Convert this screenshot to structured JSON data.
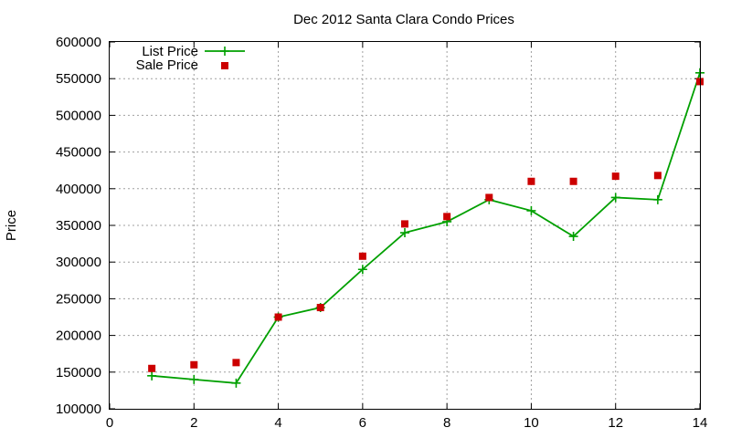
{
  "colors": {
    "list_price": "#00a000",
    "sale_price": "#cc0000"
  },
  "chart_data": {
    "type": "line",
    "title": "Dec 2012 Santa Clara Condo Prices",
    "xlabel": "",
    "ylabel": "Price",
    "xlim": [
      0,
      14
    ],
    "ylim": [
      100000,
      600000
    ],
    "x_ticks": [
      0,
      2,
      4,
      6,
      8,
      10,
      12,
      14
    ],
    "y_ticks": [
      100000,
      150000,
      200000,
      250000,
      300000,
      350000,
      400000,
      450000,
      500000,
      550000,
      600000
    ],
    "grid": true,
    "legend_position": "top-left",
    "series": [
      {
        "name": "List Price",
        "style": "line+plus",
        "x": [
          1,
          2,
          3,
          4,
          5,
          6,
          7,
          8,
          9,
          10,
          11,
          12,
          13,
          14
        ],
        "values": [
          145000,
          140000,
          135000,
          225000,
          238000,
          290000,
          340000,
          355000,
          385000,
          370000,
          335000,
          388000,
          385000,
          558000
        ]
      },
      {
        "name": "Sale Price",
        "style": "square",
        "x": [
          1,
          2,
          3,
          4,
          5,
          6,
          7,
          8,
          9,
          10,
          11,
          12,
          13,
          14
        ],
        "values": [
          155000,
          160000,
          163000,
          225000,
          238000,
          308000,
          352000,
          362000,
          388000,
          410000,
          410000,
          417000,
          418000,
          546000
        ]
      }
    ]
  }
}
